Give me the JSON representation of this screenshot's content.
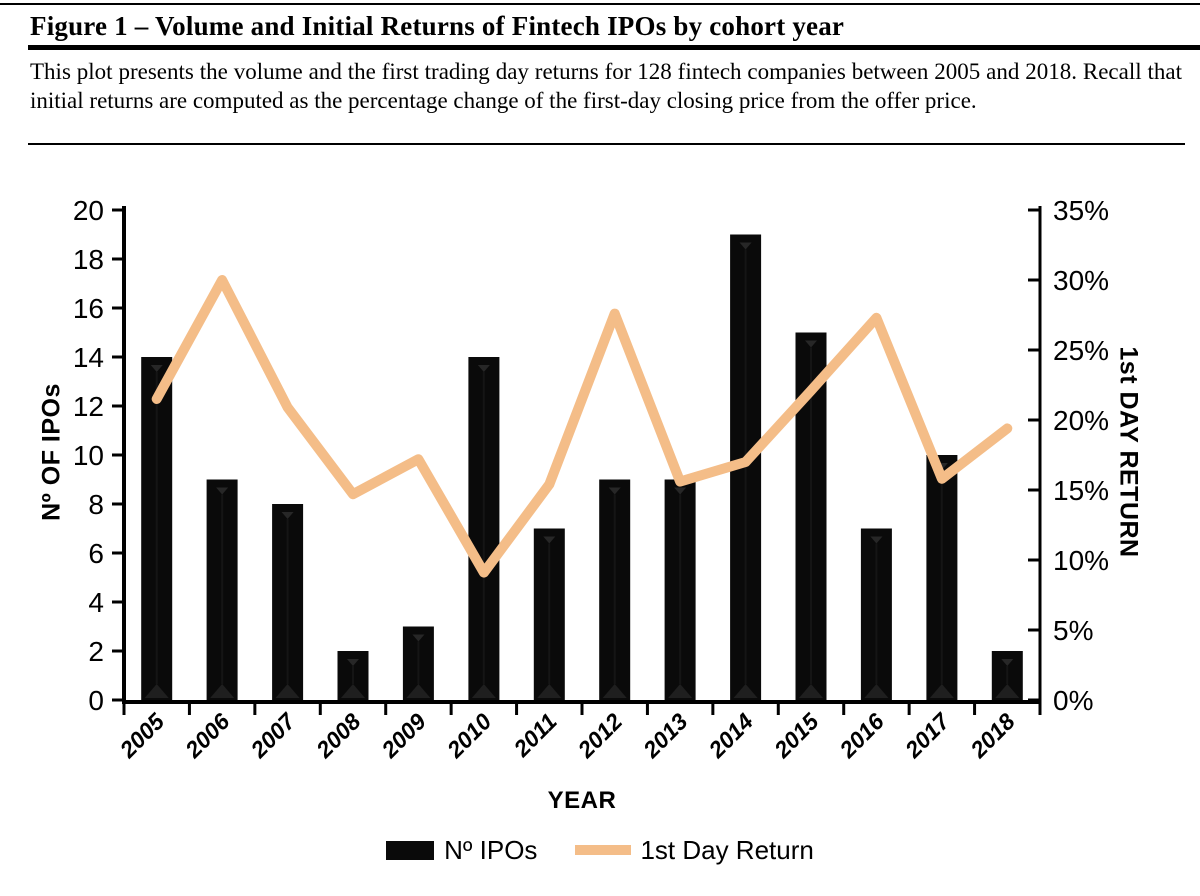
{
  "header": {
    "figure_label_title": "Figure 1 – Volume and Initial Returns of Fintech IPOs by cohort year",
    "caption": "This plot presents the volume and the first trading day returns for 128 fintech companies between 2005 and 2018. Recall that initial returns are computed as the percentage change of the first-day closing price from the offer price."
  },
  "chart_data": {
    "type": "combo-bar-line",
    "categories": [
      "2005",
      "2006",
      "2007",
      "2008",
      "2009",
      "2010",
      "2011",
      "2012",
      "2013",
      "2014",
      "2015",
      "2016",
      "2017",
      "2018"
    ],
    "series": [
      {
        "name": "Nº IPOs",
        "type": "bar",
        "axis": "left",
        "color": "#0a0a0a",
        "values": [
          14,
          9,
          8,
          2,
          3,
          14,
          7,
          9,
          9,
          19,
          15,
          7,
          10,
          2
        ]
      },
      {
        "name": "1st Day Return",
        "type": "line",
        "axis": "right",
        "color": "#f4bd88",
        "values": [
          21.5,
          30.0,
          20.9,
          14.7,
          17.2,
          9.1,
          15.4,
          27.6,
          15.6,
          17.0,
          22.1,
          27.3,
          15.8,
          19.4
        ]
      }
    ],
    "axes": {
      "left": {
        "title": "Nº OF IPOs",
        "min": 0,
        "max": 20,
        "step": 2,
        "suffix": ""
      },
      "right": {
        "title": "1st DAY RETURN",
        "min": 0,
        "max": 35,
        "step": 5,
        "suffix": "%"
      },
      "x": {
        "title": "YEAR"
      }
    },
    "legend": {
      "position": "bottom",
      "items": [
        {
          "label": "Nº IPOs",
          "swatch": "bar",
          "color": "#0a0a0a"
        },
        {
          "label": "1st Day Return",
          "swatch": "line",
          "color": "#f4bd88"
        }
      ]
    },
    "grid": false
  }
}
